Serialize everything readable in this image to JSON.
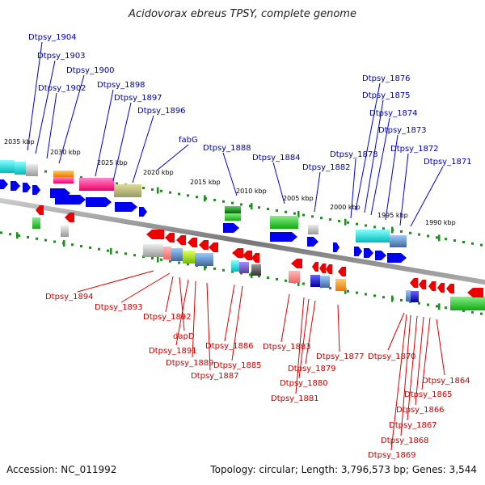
{
  "header": {
    "title": "Acidovorax ebreus TPSY, complete genome"
  },
  "footer": {
    "accession": "Accession: NC_011992",
    "topology": "Topology: circular; Length: 3,796,573 bp; Genes: 3,544"
  },
  "scale_labels": [
    "2035 kbp",
    "2030 kbp",
    "2025 kbp",
    "2020 kbp",
    "2015 kbp",
    "2010 kbp",
    "2005 kbp",
    "2000 kbp",
    "1995 kbp",
    "1990 kbp"
  ],
  "top_labels": [
    "Dtpsy_1904",
    "Dtpsy_1903",
    "Dtpsy_1900",
    "Dtpsy_1902",
    "Dtpsy_1898",
    "Dtpsy_1897",
    "Dtpsy_1896",
    "fabG",
    "Dtpsy_1888",
    "Dtpsy_1884",
    "Dtpsy_1878",
    "Dtpsy_1882",
    "Dtpsy_1876",
    "Dtpsy_1875",
    "Dtpsy_1874",
    "Dtpsy_1873",
    "Dtpsy_1872",
    "Dtpsy_1871"
  ],
  "bottom_labels": [
    "Dtpsy_1894",
    "Dtpsy_1893",
    "Dtpsy_1892",
    "dapD",
    "Dtpsy_1891",
    "Dtpsy_1889",
    "Dtpsy_1887",
    "Dtpsy_1886",
    "Dtpsy_1885",
    "Dtpsy_1883",
    "Dtpsy_1880",
    "Dtpsy_1879",
    "Dtpsy_1881",
    "Dtpsy_1877",
    "Dtpsy_1870",
    "Dtpsy_1864",
    "Dtpsy_1865",
    "Dtpsy_1866",
    "Dtpsy_1867",
    "Dtpsy_1868",
    "Dtpsy_1869"
  ],
  "colors": {
    "forward": "#0000ee",
    "reverse": "#ee0000",
    "top_label": "#0000aa",
    "bottom_label": "#cc0000",
    "backbone": "#808080",
    "tick": "#228b22"
  }
}
